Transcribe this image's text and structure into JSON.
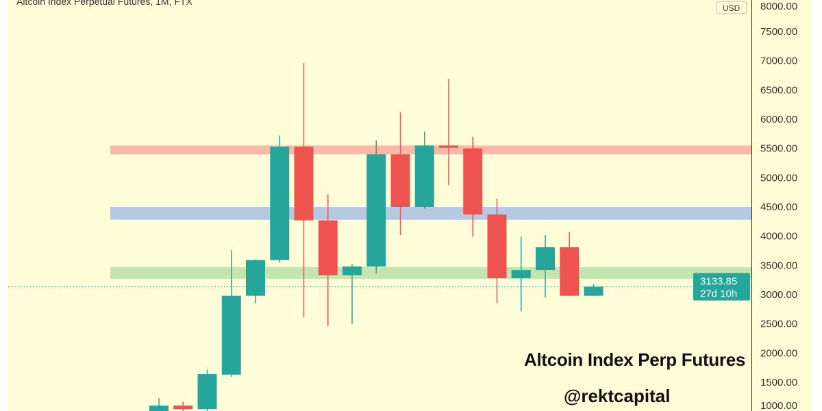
{
  "header": {
    "title": "Altcoin Index Perpetual Futures, 1M, FTX",
    "currency": "USD"
  },
  "watermark": {
    "line1": "Altcoin Index Perp Futures",
    "line2": "@rektcapital"
  },
  "last_price": {
    "price": "3133.85",
    "countdown": "27d 10h"
  },
  "colors": {
    "background": "#fffed8",
    "up": "#26a69a",
    "down": "#ef5350",
    "resistance_zone": "#f8b9a6",
    "mid_zone": "#b5c9e3",
    "support_zone": "#c5e5b0"
  },
  "chart_data": {
    "type": "candlestick",
    "title": "Altcoin Index Perpetual Futures, 1M, FTX",
    "ylabel": "USD",
    "ylim": [
      900,
      8000
    ],
    "yticks": [
      "1000.00",
      "1500.00",
      "2000.00",
      "2500.00",
      "3000.00",
      "3500.00",
      "4000.00",
      "4500.00",
      "5000.00",
      "5500.00",
      "6000.00",
      "6500.00",
      "7000.00",
      "7500.00",
      "8000.00"
    ],
    "grid": false,
    "candles": [
      {
        "o": 1000,
        "h": 1230,
        "l": 950,
        "c": 1100
      },
      {
        "o": 1100,
        "h": 1170,
        "l": 960,
        "c": 1040
      },
      {
        "o": 1040,
        "h": 1720,
        "l": 990,
        "c": 1640
      },
      {
        "o": 1630,
        "h": 3760,
        "l": 1594,
        "c": 2980
      },
      {
        "o": 2980,
        "h": 3600,
        "l": 2850,
        "c": 3590
      },
      {
        "o": 3590,
        "h": 5720,
        "l": 3550,
        "c": 5530
      },
      {
        "o": 5530,
        "h": 6960,
        "l": 2610,
        "c": 4270
      },
      {
        "o": 4270,
        "h": 4710,
        "l": 2460,
        "c": 3330
      },
      {
        "o": 3330,
        "h": 3520,
        "l": 2500,
        "c": 3480
      },
      {
        "o": 3480,
        "h": 5640,
        "l": 3360,
        "c": 5400
      },
      {
        "o": 5400,
        "h": 6120,
        "l": 4020,
        "c": 4500
      },
      {
        "o": 4500,
        "h": 5790,
        "l": 4470,
        "c": 5550
      },
      {
        "o": 5550,
        "h": 6690,
        "l": 4870,
        "c": 5510
      },
      {
        "o": 5500,
        "h": 5700,
        "l": 3990,
        "c": 4370
      },
      {
        "o": 4370,
        "h": 4640,
        "l": 2850,
        "c": 3280
      },
      {
        "o": 3280,
        "h": 3990,
        "l": 2710,
        "c": 3420
      },
      {
        "o": 3420,
        "h": 4020,
        "l": 2950,
        "c": 3810
      },
      {
        "o": 3810,
        "h": 4070,
        "l": 2980,
        "c": 2980
      },
      {
        "o": 2980,
        "h": 3180,
        "l": 2980,
        "c": 3133.85
      }
    ],
    "zones": [
      {
        "from": 5400,
        "to": 5550,
        "color": "#f8b9a6"
      },
      {
        "from": 4280,
        "to": 4500,
        "color": "#b5c9e3"
      },
      {
        "from": 3270,
        "to": 3470,
        "color": "#c5e5b0"
      }
    ],
    "last_price_line": 3133.85
  }
}
